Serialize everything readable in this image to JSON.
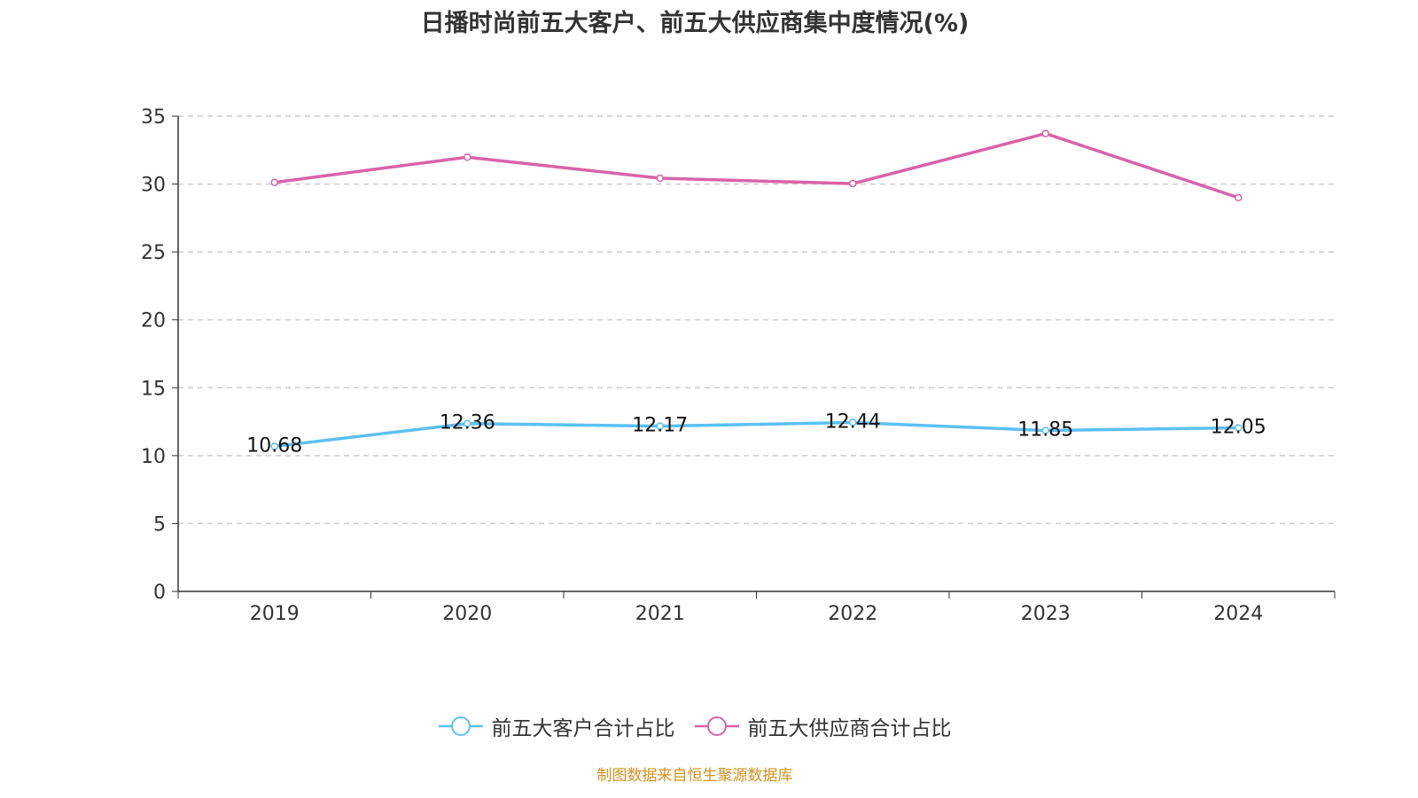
{
  "title": "日播时尚前五大客户、前五大供应商集中度情况(%)",
  "source": "制图数据来自恒生聚源数据库",
  "chart_data": {
    "type": "line",
    "title": "日播时尚前五大客户、前五大供应商集中度情况(%)",
    "categories": [
      "2019",
      "2020",
      "2021",
      "2022",
      "2023",
      "2024"
    ],
    "ylim": [
      0,
      35
    ],
    "yticks": [
      0,
      5,
      10,
      15,
      20,
      25,
      30,
      35
    ],
    "grid": true,
    "legend_placement": "bottom",
    "series": [
      {
        "name": "前五大客户合计占比",
        "color": "#5bc0f4",
        "values": [
          10.68,
          12.36,
          12.17,
          12.44,
          11.85,
          12.05
        ],
        "labels": [
          "10.68",
          "12.36",
          "12.17",
          "12.44",
          "11.85",
          "12.05"
        ]
      },
      {
        "name": "前五大供应商合计占比",
        "color": "#d863a8",
        "values": [
          30.12,
          31.98,
          30.43,
          30.03,
          33.72,
          29.0
        ]
      }
    ]
  }
}
